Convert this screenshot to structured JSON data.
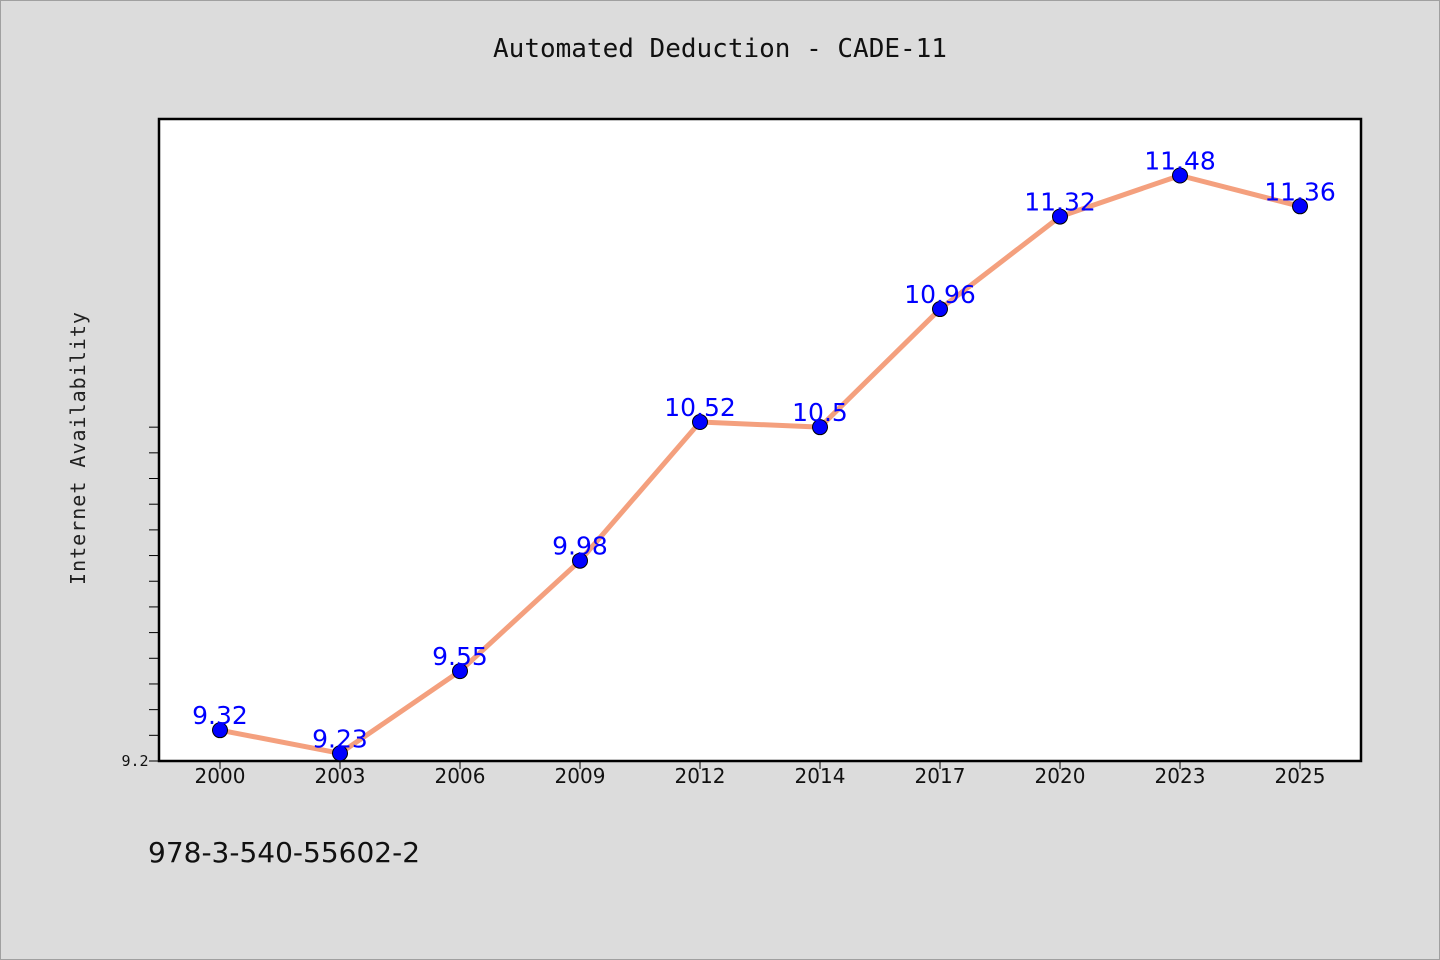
{
  "chart_data": {
    "type": "line",
    "title": "Automated Deduction - CADE-11",
    "xlabel": "",
    "ylabel": "Internet Availability",
    "categories": [
      "2000",
      "2003",
      "2006",
      "2009",
      "2012",
      "2014",
      "2017",
      "2020",
      "2023",
      "2025"
    ],
    "series": [
      {
        "values": [
          9.32,
          9.23,
          9.55,
          9.98,
          10.52,
          10.5,
          10.96,
          11.32,
          11.48,
          11.36
        ]
      }
    ],
    "y_tick_labels": [
      "9.2"
    ],
    "ylim": [
      9.2,
      11.7
    ],
    "grid": false,
    "legend": "none",
    "colors": {
      "line": "#f4a07e",
      "marker": "#0000ff",
      "data_label": "#0000ff",
      "background": "#dcdcdc",
      "plot_background": "#ffffff"
    }
  },
  "footer": {
    "text": "978-3-540-55602-2"
  }
}
